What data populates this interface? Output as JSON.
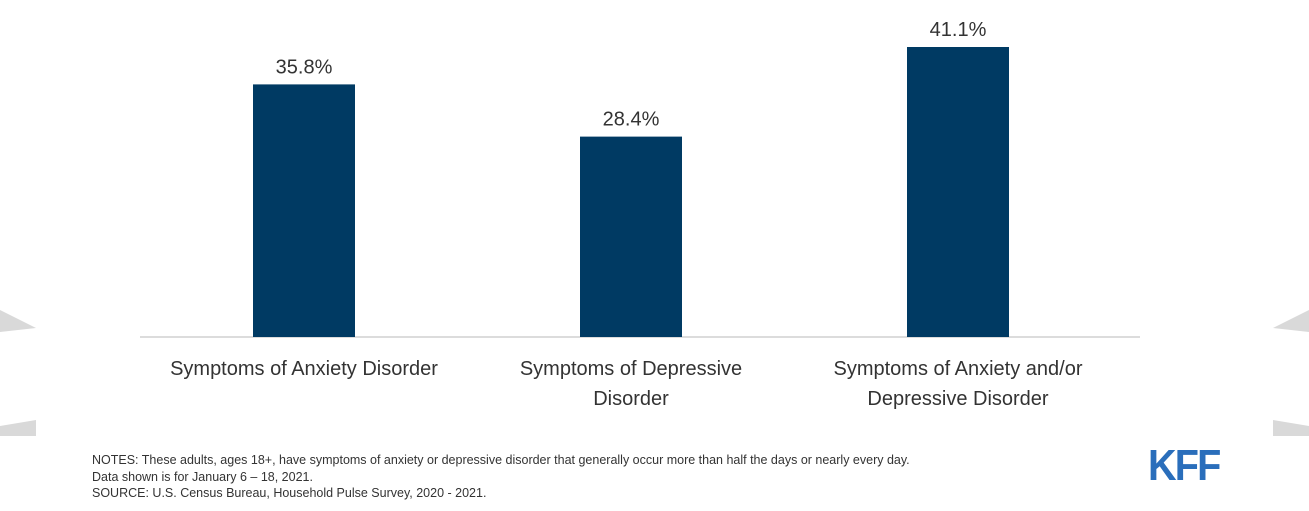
{
  "chart_data": {
    "type": "bar",
    "categories": [
      [
        "Symptoms of Anxiety Disorder"
      ],
      [
        "Symptoms of Depressive",
        "Disorder"
      ],
      [
        "Symptoms of Anxiety and/or",
        "Depressive Disorder"
      ]
    ],
    "values": [
      35.8,
      28.4,
      41.1
    ],
    "value_labels": [
      "35.8%",
      "28.4%",
      "41.1%"
    ],
    "ylim": [
      0,
      42
    ],
    "grid": false,
    "bar_color": "#003a63",
    "baseline_color": "#d0d0d0"
  },
  "notes": {
    "line1": "NOTES: These adults, ages 18+, have symptoms of anxiety or depressive disorder that generally occur more than half the days or nearly every day.",
    "line2": "Data shown is for January 6 – 18, 2021.",
    "source": "SOURCE: U.S. Census Bureau, Household Pulse Survey, 2020 - 2021."
  },
  "logo": "KFF",
  "icons": {
    "left_arrow": "left-triangle-icon",
    "right_arrow": "right-triangle-icon"
  }
}
